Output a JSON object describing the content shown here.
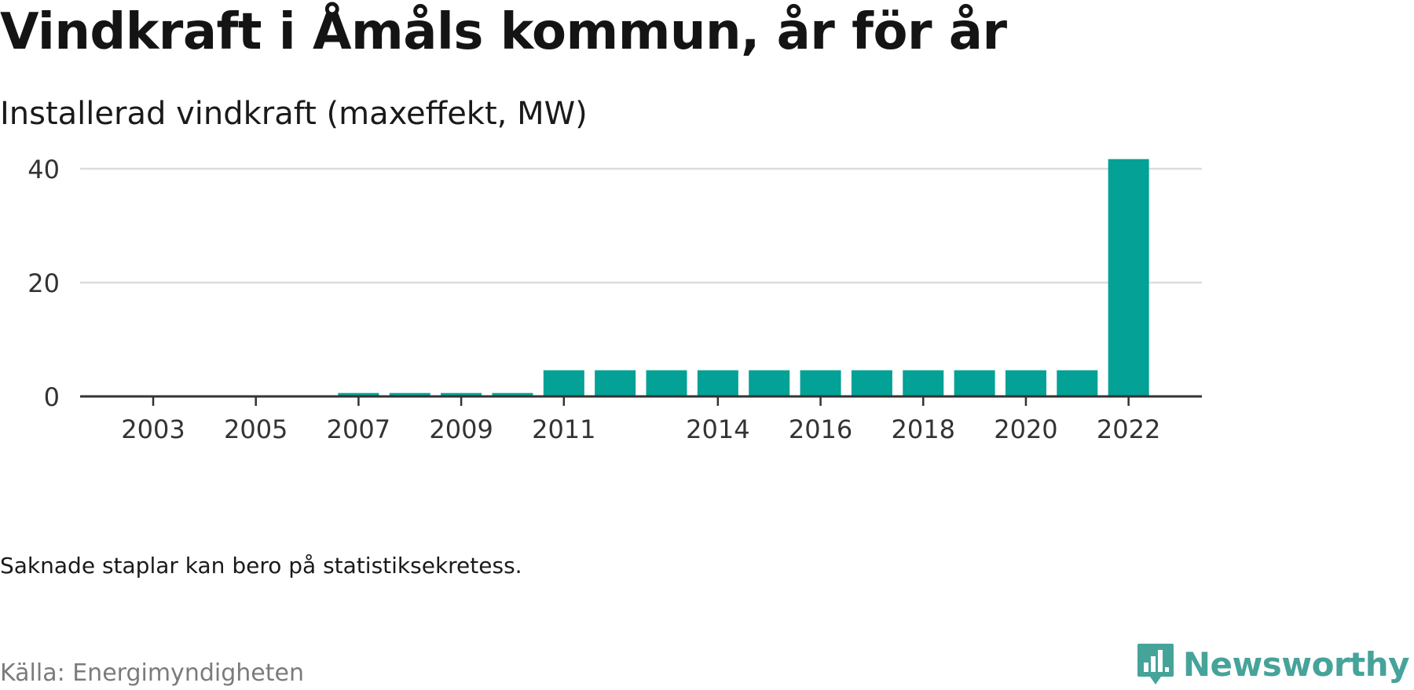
{
  "title": "Vindkraft i Åmåls kommun, år för år",
  "subtitle": "Installerad vindkraft (maxeffekt, MW)",
  "note": "Saknade staplar kan bero på statistiksekretess.",
  "source": "Källa: Energimyndigheten",
  "brand": {
    "name": "Newsworthy",
    "icon": "newsworthy-logo-icon",
    "color": "#46a39a"
  },
  "colors": {
    "bar": "#04a196",
    "grid": "#dcdcdc",
    "axis": "#333333"
  },
  "chart_data": {
    "type": "bar",
    "categories": [
      "2003",
      "2004",
      "2005",
      "2006",
      "2007",
      "2008",
      "2009",
      "2010",
      "2011",
      "2012",
      "2013",
      "2014",
      "2015",
      "2016",
      "2017",
      "2018",
      "2019",
      "2020",
      "2021",
      "2022"
    ],
    "values": [
      0,
      0,
      0,
      0,
      0.6,
      0.6,
      0.6,
      0.6,
      4.6,
      4.6,
      4.6,
      4.6,
      4.6,
      4.6,
      4.6,
      4.6,
      4.6,
      4.6,
      4.6,
      41.7
    ],
    "x_tick_labels": [
      "2003",
      "2005",
      "2007",
      "2009",
      "2011",
      "2014",
      "2016",
      "2018",
      "2020",
      "2022"
    ],
    "y_ticks": [
      0,
      20,
      40
    ],
    "ylim": [
      0,
      44
    ],
    "grid": true,
    "legend": "none"
  }
}
